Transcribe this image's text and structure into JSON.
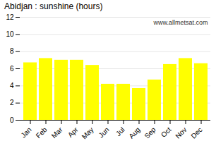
{
  "chart_data": {
    "type": "bar",
    "title": "Abidjan : sunshine (hours)",
    "categories": [
      "Jan",
      "Feb",
      "Mar",
      "Apr",
      "May",
      "Jun",
      "Jul",
      "Aug",
      "Sep",
      "Oct",
      "Nov",
      "Dec"
    ],
    "values": [
      6.7,
      7.2,
      7.0,
      7.0,
      6.4,
      4.2,
      4.2,
      3.7,
      4.7,
      6.5,
      7.2,
      6.6
    ],
    "color": "#ffff00",
    "ylim": [
      0,
      12
    ],
    "yticks": [
      0,
      2,
      4,
      6,
      8,
      10,
      12
    ],
    "grid": true,
    "annotations": [
      "www.allmetsat.com"
    ]
  }
}
